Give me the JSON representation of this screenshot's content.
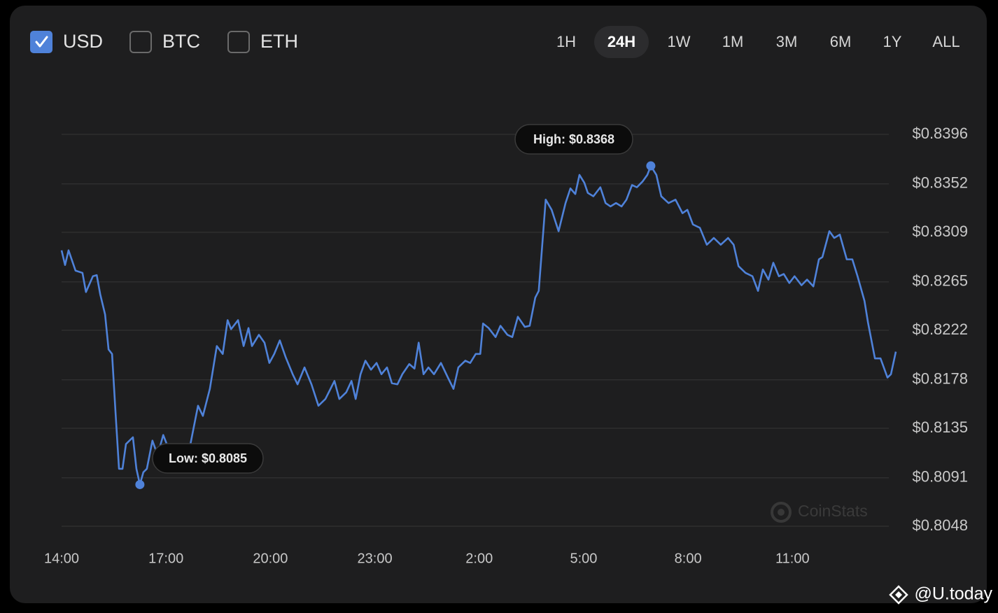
{
  "currencies": [
    {
      "label": "USD",
      "checked": true
    },
    {
      "label": "BTC",
      "checked": false
    },
    {
      "label": "ETH",
      "checked": false
    }
  ],
  "ranges": [
    "1H",
    "24H",
    "1W",
    "1M",
    "3M",
    "6M",
    "1Y",
    "ALL"
  ],
  "selected_range": "24H",
  "watermark": "CoinStats",
  "source": "@U.today",
  "chart_data": {
    "type": "line",
    "color": "#4f82d9",
    "grid": true,
    "xlim": [
      0,
      24
    ],
    "xticks": [
      {
        "value": 0,
        "label": "14:00"
      },
      {
        "value": 3,
        "label": "17:00"
      },
      {
        "value": 6,
        "label": "20:00"
      },
      {
        "value": 9,
        "label": "23:00"
      },
      {
        "value": 12,
        "label": "2:00"
      },
      {
        "value": 15,
        "label": "5:00"
      },
      {
        "value": 18,
        "label": "8:00"
      },
      {
        "value": 21,
        "label": "11:00"
      }
    ],
    "ylim": [
      0.8048,
      0.8396
    ],
    "yticks": [
      {
        "value": 0.8396,
        "label": "$0.8396"
      },
      {
        "value": 0.8352,
        "label": "$0.8352"
      },
      {
        "value": 0.8309,
        "label": "$0.8309"
      },
      {
        "value": 0.8265,
        "label": "$0.8265"
      },
      {
        "value": 0.8222,
        "label": "$0.8222"
      },
      {
        "value": 0.8178,
        "label": "$0.8178"
      },
      {
        "value": 0.8135,
        "label": "$0.8135"
      },
      {
        "value": 0.8091,
        "label": "$0.8091"
      },
      {
        "value": 0.8048,
        "label": "$0.8048"
      }
    ],
    "high": {
      "label": "High: $0.8368",
      "x": 16.93,
      "value": 0.8368
    },
    "low": {
      "label": "Low: $0.8085",
      "x": 2.25,
      "value": 0.8085
    },
    "x": [
      0,
      0.1,
      0.2,
      0.4,
      0.6,
      0.7,
      0.9,
      1.01,
      1.11,
      1.25,
      1.35,
      1.45,
      1.55,
      1.65,
      1.75,
      1.85,
      2.05,
      2.15,
      2.25,
      2.35,
      2.45,
      2.61,
      2.76,
      2.92,
      3.06,
      3.26,
      3.42,
      3.62,
      3.76,
      3.92,
      4.06,
      4.26,
      4.46,
      4.63,
      4.77,
      4.87,
      5.07,
      5.23,
      5.37,
      5.47,
      5.67,
      5.83,
      5.97,
      6.11,
      6.27,
      6.44,
      6.64,
      6.78,
      6.98,
      7.18,
      7.38,
      7.58,
      7.84,
      7.98,
      8.18,
      8.33,
      8.45,
      8.59,
      8.73,
      8.89,
      9.05,
      9.19,
      9.35,
      9.49,
      9.65,
      9.79,
      9.99,
      10.14,
      10.26,
      10.4,
      10.54,
      10.7,
      10.9,
      11.1,
      11.26,
      11.4,
      11.6,
      11.74,
      11.9,
      12.03,
      12.11,
      12.27,
      12.47,
      12.61,
      12.81,
      12.95,
      13.11,
      13.31,
      13.45,
      13.61,
      13.71,
      13.91,
      14.08,
      14.28,
      14.48,
      14.62,
      14.76,
      14.88,
      15.02,
      15.12,
      15.28,
      15.48,
      15.63,
      15.77,
      15.93,
      16.09,
      16.23,
      16.39,
      16.53,
      16.69,
      16.83,
      16.93,
      17.09,
      17.23,
      17.44,
      17.64,
      17.84,
      17.98,
      18.14,
      18.34,
      18.54,
      18.74,
      18.94,
      19.15,
      19.31,
      19.45,
      19.65,
      19.85,
      20.01,
      20.15,
      20.31,
      20.45,
      20.61,
      20.75,
      20.91,
      21.06,
      21.26,
      21.42,
      21.6,
      21.76,
      21.86,
      22.06,
      22.2,
      22.36,
      22.56,
      22.72,
      22.87,
      23.07,
      23.17,
      23.37,
      23.53,
      23.73,
      23.83,
      23.97
    ],
    "values": [
      0.8293,
      0.828,
      0.8293,
      0.8275,
      0.8273,
      0.8256,
      0.827,
      0.8271,
      0.8254,
      0.8236,
      0.8205,
      0.8201,
      0.8149,
      0.8099,
      0.8099,
      0.8121,
      0.8127,
      0.8099,
      0.8085,
      0.8096,
      0.8099,
      0.8124,
      0.8111,
      0.8129,
      0.8118,
      0.8096,
      0.8099,
      0.8108,
      0.813,
      0.8155,
      0.8146,
      0.817,
      0.8208,
      0.8201,
      0.8231,
      0.8223,
      0.8231,
      0.8208,
      0.8224,
      0.8208,
      0.8218,
      0.8211,
      0.8193,
      0.8201,
      0.8213,
      0.8198,
      0.8183,
      0.8174,
      0.8189,
      0.8174,
      0.8155,
      0.8161,
      0.8177,
      0.8161,
      0.8167,
      0.8177,
      0.8161,
      0.8183,
      0.8195,
      0.8187,
      0.8193,
      0.8183,
      0.8189,
      0.8175,
      0.8174,
      0.8183,
      0.8192,
      0.8188,
      0.8211,
      0.8183,
      0.8189,
      0.8183,
      0.8193,
      0.818,
      0.817,
      0.8189,
      0.8195,
      0.8193,
      0.8201,
      0.8201,
      0.8228,
      0.8224,
      0.8216,
      0.8226,
      0.8218,
      0.8216,
      0.8234,
      0.8225,
      0.8226,
      0.8251,
      0.8257,
      0.8338,
      0.8329,
      0.831,
      0.8335,
      0.8348,
      0.8343,
      0.836,
      0.8353,
      0.8344,
      0.8341,
      0.8349,
      0.8335,
      0.8332,
      0.8335,
      0.8332,
      0.8338,
      0.8351,
      0.8349,
      0.8354,
      0.836,
      0.8368,
      0.836,
      0.8341,
      0.8335,
      0.8338,
      0.8326,
      0.8329,
      0.8316,
      0.8313,
      0.8298,
      0.8304,
      0.8298,
      0.8304,
      0.8298,
      0.8279,
      0.8273,
      0.827,
      0.8257,
      0.8276,
      0.8267,
      0.8282,
      0.827,
      0.8272,
      0.8264,
      0.827,
      0.8262,
      0.8267,
      0.8261,
      0.8285,
      0.8287,
      0.831,
      0.8304,
      0.8307,
      0.8285,
      0.8285,
      0.827,
      0.8248,
      0.8229,
      0.8197,
      0.8197,
      0.818,
      0.8183,
      0.8203
    ]
  }
}
